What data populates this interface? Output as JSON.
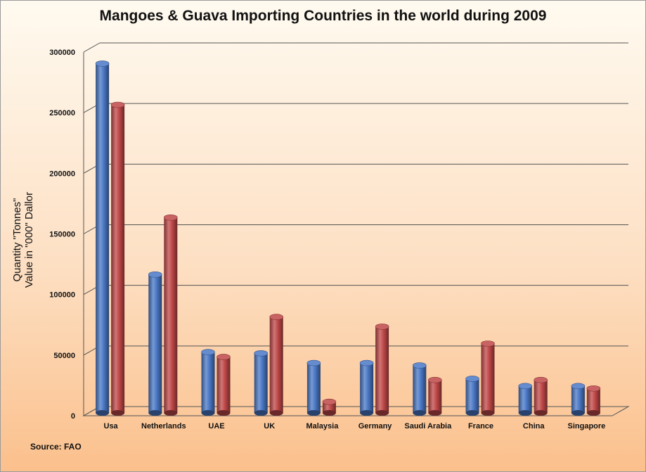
{
  "chart_data": {
    "type": "bar",
    "title": "Mangoes & Guava Importing Countries in the world during 2009",
    "ylabel": [
      "Quantity \"Tonnes\"",
      "Value in \"000\" Dallor"
    ],
    "xlabel": "",
    "source": "Source: FAO",
    "ylim": [
      0,
      300000
    ],
    "yticks": [
      0,
      50000,
      100000,
      150000,
      200000,
      250000,
      300000
    ],
    "categories": [
      "Usa",
      "Netherlands",
      "UAE",
      "UK",
      "Malaysia",
      "Germany",
      "Saudi Arabia",
      "France",
      "China",
      "Singapore"
    ],
    "series": [
      {
        "color": "#4a78c6",
        "values": [
          287000,
          113000,
          49000,
          48000,
          40000,
          40000,
          38000,
          27000,
          21000,
          21000
        ]
      },
      {
        "color": "#c04848",
        "values": [
          253000,
          160000,
          45000,
          78000,
          8000,
          70000,
          26000,
          56000,
          26000,
          19000
        ]
      }
    ],
    "grid": true,
    "legend": "none"
  }
}
